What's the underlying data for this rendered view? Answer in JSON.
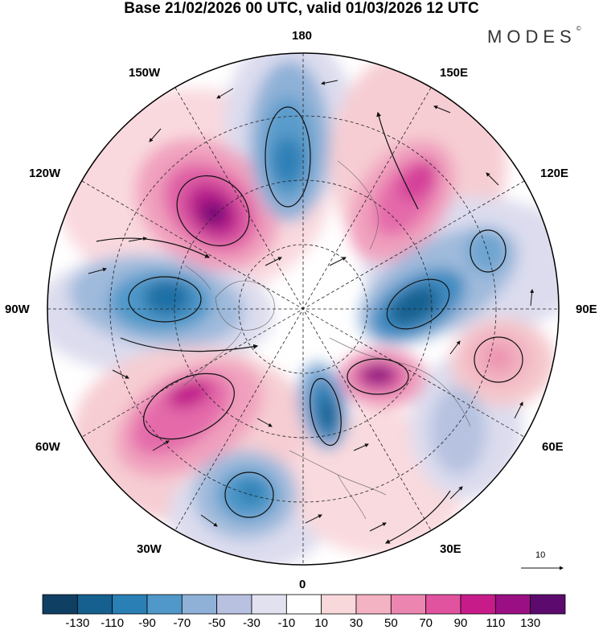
{
  "title": "Base 21/02/2026 00 UTC, valid 01/03/2026 12 UTC",
  "brand": {
    "name": "MODES",
    "mark": "©"
  },
  "longitude_labels": {
    "top": "180",
    "bottom": "0",
    "left": "90W",
    "right": "90E",
    "upper_left_1": "150W",
    "upper_left_2": "120W",
    "upper_right_1": "150E",
    "upper_right_2": "120E",
    "lower_left_1": "60W",
    "lower_left_2": "30W",
    "lower_right_1": "60E",
    "lower_right_2": "30E"
  },
  "reference_vector": {
    "label": "10"
  },
  "colorbar": {
    "tick_labels": [
      "-130",
      "-110",
      "-90",
      "-70",
      "-50",
      "-30",
      "-10",
      "10",
      "30",
      "50",
      "70",
      "90",
      "110",
      "130"
    ],
    "colors": [
      "#0f3f63",
      "#15608f",
      "#2a7fb4",
      "#4f98c9",
      "#8fb1d7",
      "#b8c1e0",
      "#e1e1f0",
      "#ffffff",
      "#f9d8dc",
      "#f4b3c2",
      "#ec86b0",
      "#e1529f",
      "#c81b8a",
      "#9a0f84",
      "#5c0a6e"
    ]
  }
}
